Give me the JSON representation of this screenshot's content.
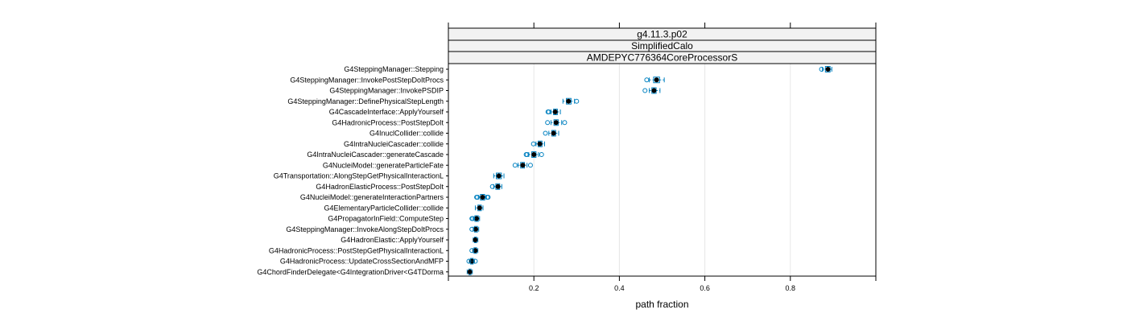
{
  "chart_data": {
    "type": "box",
    "strips": [
      "g4.11.3.p02",
      "SimplifiedCalo",
      "AMDEPYC776364CoreProcessorS"
    ],
    "xlabel": "path fraction",
    "xlim": [
      0.0,
      1.0
    ],
    "xticks": [
      0.2,
      0.4,
      0.6,
      0.8
    ],
    "tick_labels": [
      "0.2",
      "0.4",
      "0.6",
      "0.8"
    ],
    "grid": true,
    "colors": {
      "box": "#0080c0",
      "median": "#000000",
      "grid": "#e6e6e6",
      "strip": "#f2f2f2"
    },
    "categories": [
      "G4SteppingManager::Stepping",
      "G4SteppingManager::InvokePostStepDoItProcs",
      "G4SteppingManager::InvokePSDIP",
      "G4SteppingManager::DefinePhysicalStepLength",
      "G4CascadeInterface::ApplyYourself",
      "G4HadronicProcess::PostStepDoIt",
      "G4InuclCollider::collide",
      "G4IntraNucleiCascader::collide",
      "G4IntraNucleiCascader::generateCascade",
      "G4NucleiModel::generateParticleFate",
      "G4Transportation::AlongStepGetPhysicalInteractionL",
      "G4HadronElasticProcess::PostStepDoIt",
      "G4NucleiModel::generateInteractionPartners",
      "G4ElementaryParticleCollider::collide",
      "G4PropagatorInField::ComputeStep",
      "G4SteppingManager::InvokeAlongStepDoItProcs",
      "G4HadronElastic::ApplyYourself",
      "G4HadronicProcess::PostStepGetPhysicalInteractionL",
      "G4HadronicProcess::UpdateCrossSectionAndMFP",
      "G4ChordFinderDelegate<G4IntegrationDriver<G4TDorma"
    ],
    "boxes": [
      {
        "min": 0.875,
        "q1": 0.882,
        "median": 0.888,
        "q3": 0.893,
        "max": 0.897,
        "outliers": [
          0.873
        ]
      },
      {
        "min": 0.47,
        "q1": 0.48,
        "median": 0.487,
        "q3": 0.494,
        "max": 0.505,
        "outliers": [
          0.464
        ]
      },
      {
        "min": 0.47,
        "q1": 0.476,
        "median": 0.481,
        "q3": 0.486,
        "max": 0.495,
        "outliers": [
          0.46
        ]
      },
      {
        "min": 0.268,
        "q1": 0.276,
        "median": 0.281,
        "q3": 0.287,
        "max": 0.295,
        "outliers": [
          0.3
        ]
      },
      {
        "min": 0.24,
        "q1": 0.246,
        "median": 0.25,
        "q3": 0.255,
        "max": 0.262,
        "outliers": [
          0.233,
          0.235
        ]
      },
      {
        "min": 0.24,
        "q1": 0.247,
        "median": 0.252,
        "q3": 0.257,
        "max": 0.265,
        "outliers": [
          0.232,
          0.272
        ]
      },
      {
        "min": 0.235,
        "q1": 0.242,
        "median": 0.246,
        "q3": 0.251,
        "max": 0.258,
        "outliers": [
          0.227
        ]
      },
      {
        "min": 0.205,
        "q1": 0.21,
        "median": 0.214,
        "q3": 0.219,
        "max": 0.225,
        "outliers": [
          0.199
        ]
      },
      {
        "min": 0.188,
        "q1": 0.195,
        "median": 0.2,
        "q3": 0.205,
        "max": 0.211,
        "outliers": [
          0.182,
          0.184,
          0.218
        ]
      },
      {
        "min": 0.163,
        "q1": 0.169,
        "median": 0.174,
        "q3": 0.178,
        "max": 0.184,
        "outliers": [
          0.156,
          0.192
        ]
      },
      {
        "min": 0.106,
        "q1": 0.112,
        "median": 0.118,
        "q3": 0.124,
        "max": 0.13,
        "outliers": []
      },
      {
        "min": 0.106,
        "q1": 0.111,
        "median": 0.116,
        "q3": 0.12,
        "max": 0.125,
        "outliers": [
          0.103
        ]
      },
      {
        "min": 0.07,
        "q1": 0.075,
        "median": 0.08,
        "q3": 0.085,
        "max": 0.089,
        "outliers": [
          0.066,
          0.068,
          0.091,
          0.093
        ]
      },
      {
        "min": 0.063,
        "q1": 0.069,
        "median": 0.073,
        "q3": 0.077,
        "max": 0.081,
        "outliers": []
      },
      {
        "min": 0.058,
        "q1": 0.062,
        "median": 0.066,
        "q3": 0.07,
        "max": 0.073,
        "outliers": [
          0.055,
          0.057
        ]
      },
      {
        "min": 0.058,
        "q1": 0.061,
        "median": 0.064,
        "q3": 0.068,
        "max": 0.071,
        "outliers": [
          0.055
        ]
      },
      {
        "min": 0.058,
        "q1": 0.061,
        "median": 0.063,
        "q3": 0.066,
        "max": 0.069,
        "outliers": []
      },
      {
        "min": 0.057,
        "q1": 0.06,
        "median": 0.063,
        "q3": 0.066,
        "max": 0.069,
        "outliers": [
          0.055
        ]
      },
      {
        "min": 0.049,
        "q1": 0.052,
        "median": 0.055,
        "q3": 0.058,
        "max": 0.061,
        "outliers": [
          0.048,
          0.063
        ]
      },
      {
        "min": 0.044,
        "q1": 0.048,
        "median": 0.05,
        "q3": 0.053,
        "max": 0.056,
        "outliers": []
      }
    ]
  }
}
